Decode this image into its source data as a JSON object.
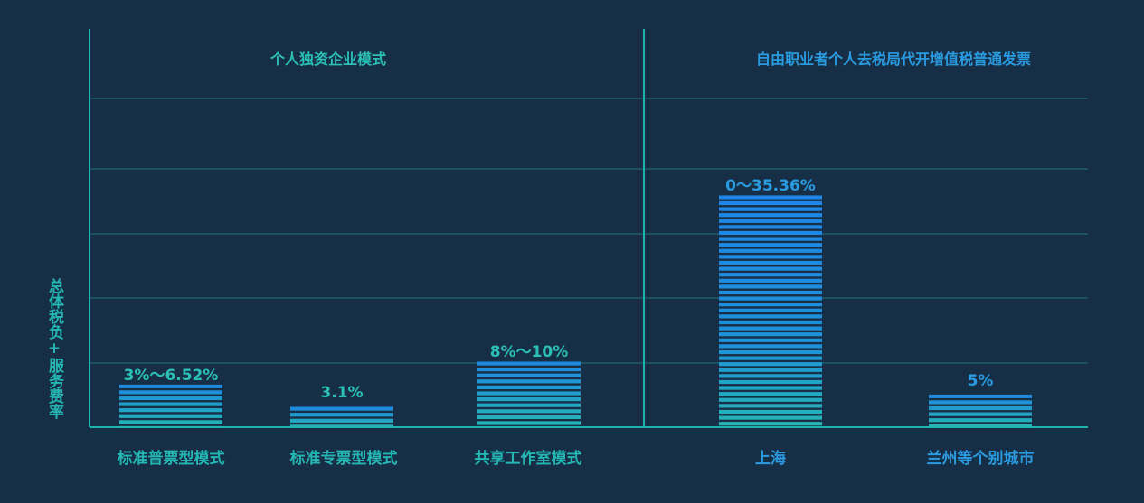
{
  "chart_data": {
    "type": "bar",
    "ylabel": "总体税负+服务费率",
    "groups": [
      {
        "title": "个人独资企业模式",
        "color": "#2bbfb6"
      },
      {
        "title": "自由职业者个人去税局代开增值税普通发票",
        "color": "#2a9be0"
      }
    ],
    "categories": [
      "标准普票型模式",
      "标准专票型模式",
      "共享工作室模式",
      "上海",
      "兰州等个别城市"
    ],
    "category_group": [
      0,
      0,
      0,
      1,
      1
    ],
    "values": [
      6.52,
      3.1,
      10,
      35.36,
      5
    ],
    "value_labels": [
      "3%～6.52%",
      "3.1%",
      "8%～10%",
      "0～35.36%",
      "5%"
    ],
    "ylim": [
      0,
      50
    ],
    "grid": true,
    "colors": {
      "background": "#172f46",
      "axis": "#1fb3ad",
      "grid": "#1e5d68",
      "bar_bottom": "#25b6b3",
      "bar_top": "#1e86e8",
      "group_left_text": "#2bbfb6",
      "group_right_text": "#2a9be0"
    }
  }
}
